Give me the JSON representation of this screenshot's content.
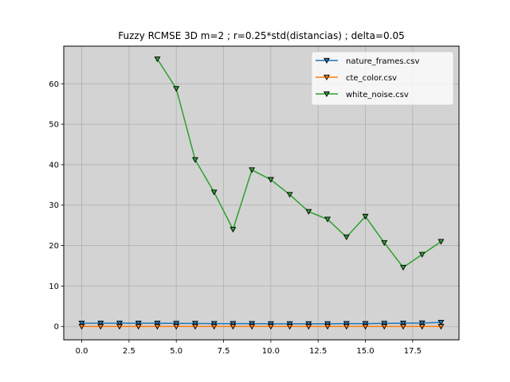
{
  "chart_data": {
    "type": "line",
    "title": "Fuzzy RCMSE 3D m=2 ; r=0.25*std(distancias) ; delta=0.05",
    "xlabel": "",
    "ylabel": "",
    "xlim": [
      -0.95,
      19.95
    ],
    "ylim": [
      -3.3,
      69.3
    ],
    "x_ticks": [
      0,
      2.5,
      5,
      7.5,
      10,
      12.5,
      15,
      17.5
    ],
    "x_tick_labels": [
      "0.0",
      "2.5",
      "5.0",
      "7.5",
      "10.0",
      "12.5",
      "15.0",
      "17.5"
    ],
    "y_ticks": [
      0,
      10,
      20,
      30,
      40,
      50,
      60
    ],
    "y_tick_labels": [
      "0",
      "10",
      "20",
      "30",
      "40",
      "50",
      "60"
    ],
    "grid": true,
    "legend_position": "top-right",
    "marker": "triangle-down",
    "series": [
      {
        "name": "nature_frames.csv",
        "color": "#1f77b4",
        "x": [
          0,
          1,
          2,
          3,
          4,
          5,
          6,
          7,
          8,
          9,
          10,
          11,
          12,
          13,
          14,
          15,
          16,
          17,
          18,
          19
        ],
        "y": [
          0.8,
          0.8,
          0.8,
          0.8,
          0.8,
          0.75,
          0.75,
          0.7,
          0.7,
          0.7,
          0.65,
          0.65,
          0.65,
          0.65,
          0.7,
          0.7,
          0.75,
          0.8,
          0.85,
          1.0
        ]
      },
      {
        "name": "cte_color.csv",
        "color": "#ff7f0e",
        "x": [
          0,
          1,
          2,
          3,
          4,
          5,
          6,
          7,
          8,
          9,
          10,
          11,
          12,
          13,
          14,
          15,
          16,
          17,
          18,
          19
        ],
        "y": [
          0,
          0,
          0,
          0,
          0,
          0,
          0,
          0,
          0,
          0,
          0,
          0,
          0,
          0,
          0,
          0,
          0,
          0,
          0,
          0
        ]
      },
      {
        "name": "white_noise.csv",
        "color": "#2ca02c",
        "x": [
          4,
          5,
          6,
          7,
          8,
          9,
          10,
          11,
          12,
          13,
          14,
          15,
          16,
          17,
          18,
          19
        ],
        "y": [
          66.1,
          58.8,
          41.2,
          33.2,
          24.0,
          38.7,
          36.3,
          32.6,
          28.4,
          26.5,
          22.1,
          27.2,
          20.7,
          14.6,
          17.8,
          21.0
        ]
      }
    ]
  }
}
